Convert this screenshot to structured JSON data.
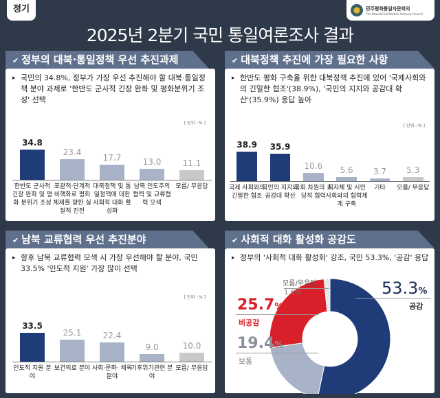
{
  "badge": "정기",
  "logo": {
    "name_ko": "민주평화통일자문회의",
    "name_en": "The Peaceful Unification Advisory Council"
  },
  "title": "2025년 2분기 국민 통일여론조사 결과",
  "sections": [
    {
      "header": "정부의 대북·통일정책 우선 추진과제",
      "desc": "국민의 34.8%, 정부가 가장 우선 추진해야 할 대북·통일정책 분야 과제로 '한반도 군사적 긴장 완화 및 평화분위기 조성' 선택",
      "unit": "[ 단위 : % ]"
    },
    {
      "header": "대북정책 추진에 가장 필요한 사항",
      "desc": "한반도 평화 구축을 위한 대북정책 추진에 있어 '국제사회와의 긴밀한 협조'(38.9%), '국민의 지지와 공감대 확산'(35.9%) 응답 높아",
      "unit": "[ 단위 : % ]"
    },
    {
      "header": "남북 교류협력 우선 추진분야",
      "desc": "향후 남북 교류협력 모색 시 가장 우선해야 할 분야, 국민 33.5% '인도적 지원' 가장 많이 선택",
      "unit": "[ 단위 : % ]"
    },
    {
      "header": "사회적 대화 활성화 공감도",
      "desc": "정부의 '사회적 대화 활성화' 강조, 국민 53.3%, '공감' 응답",
      "unit": ""
    }
  ],
  "colors": {
    "highlight": "#1f3b78",
    "normal": "#a8b3c8",
    "unknown": "#c9c9c9",
    "red": "#d9202a",
    "background": "#2e3949"
  },
  "chart_data": [
    {
      "type": "bar",
      "unit": "%",
      "categories": [
        "한반도 군사적 긴장 완화 및 평화 분위기 조성",
        "포괄적·단계적 비핵화로 평화 체제를 향한 실질적 진전",
        "대북정책 및 통일정책에 대한 사회적 대화 활성화",
        "남북 인도주의 협력 및 교류협력 모색",
        "모름/ 무응답"
      ],
      "values": [
        34.8,
        23.4,
        17.7,
        13.0,
        11.1
      ],
      "highlight": [
        0
      ]
    },
    {
      "type": "bar",
      "unit": "%",
      "categories": [
        "국제 사회와의 긴밀한 협조",
        "국민의 지지와 공감대 확산",
        "국회 차원의 초당적 협력",
        "지자체 및 시민사회와의 협력체계 구축",
        "기타",
        "모름/ 무응답"
      ],
      "values": [
        38.9,
        35.9,
        10.6,
        5.6,
        3.7,
        5.3
      ],
      "highlight": [
        0,
        1
      ]
    },
    {
      "type": "bar",
      "unit": "%",
      "categories": [
        "인도적 지원 분야",
        "보건의료 분야",
        "사회·문화· 체육 분야",
        "기후위기관련 분야",
        "모름/ 무응답"
      ],
      "values": [
        33.5,
        25.1,
        22.4,
        9.0,
        10.0
      ],
      "highlight": [
        0
      ]
    },
    {
      "type": "pie",
      "donut": true,
      "unit": "%",
      "slices": [
        {
          "label": "공감",
          "value": 53.3,
          "color": "#1f3b78"
        },
        {
          "label": "보통",
          "value": 19.4,
          "color": "#a8b3c8"
        },
        {
          "label": "비공감",
          "value": 25.7,
          "color": "#d9202a"
        },
        {
          "label": "모름/무응답",
          "value": 1.6,
          "color": "hatched"
        }
      ]
    }
  ]
}
